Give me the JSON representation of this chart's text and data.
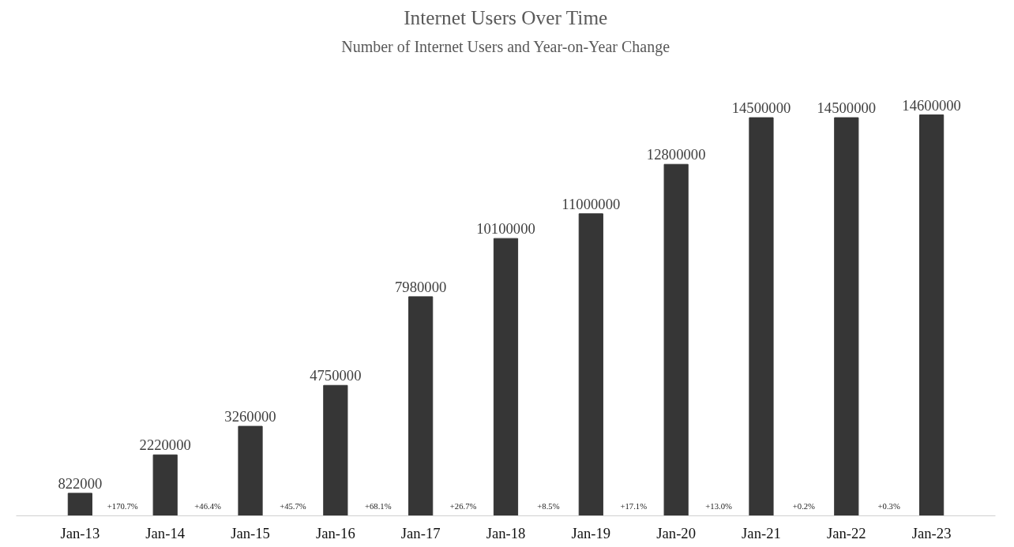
{
  "chart_data": {
    "type": "bar",
    "title": "Internet Users Over Time",
    "subtitle": "Number of Internet Users and Year-on-Year Change",
    "categories": [
      "Jan-13",
      "Jan-14",
      "Jan-15",
      "Jan-16",
      "Jan-17",
      "Jan-18",
      "Jan-19",
      "Jan-20",
      "Jan-21",
      "Jan-22",
      "Jan-23"
    ],
    "values": [
      822000,
      2220000,
      3260000,
      4750000,
      7980000,
      10100000,
      11000000,
      12800000,
      14500000,
      14500000,
      14600000
    ],
    "color": "#363636",
    "data_labels": true,
    "tick_labels": "x",
    "annotations": [
      "+170.7%",
      "+46.4%",
      "+45.7%",
      "+68.1%",
      "+26.7%",
      "+8.5%",
      "+17.1%",
      "+13.0%",
      "+0.2%",
      "+0.3%"
    ]
  }
}
